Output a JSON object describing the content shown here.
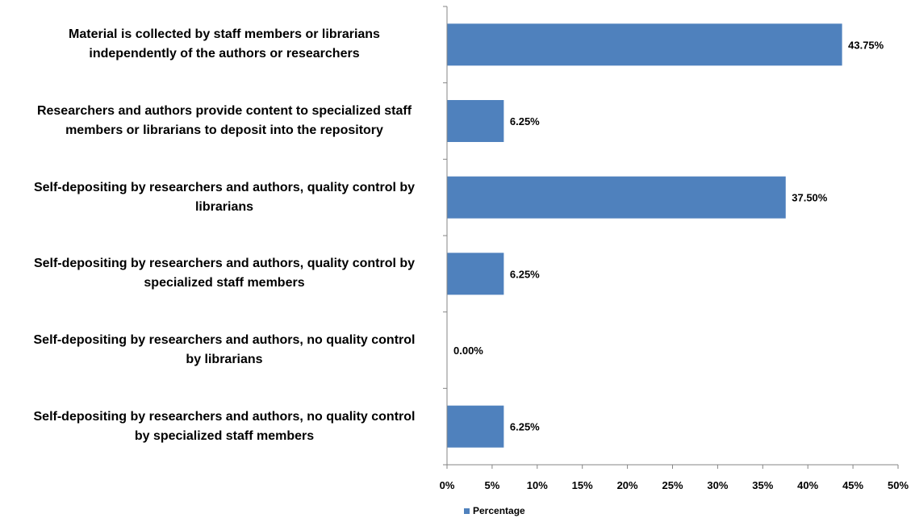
{
  "chart_data": {
    "type": "bar",
    "orientation": "horizontal",
    "categories": [
      "Material is collected by staff members or librarians\nindependently of the authors or researchers",
      "Researchers and authors provide content to specialized staff\nmembers or librarians to deposit into the repository",
      "Self-depositing by researchers and authors, quality control by\nlibrarians",
      "Self-depositing by researchers and authors, quality control by\nspecialized staff members",
      "Self-depositing by researchers and authors, no quality control\nby librarians",
      "Self-depositing by researchers and authors, no quality control\nby specialized staff members"
    ],
    "series": [
      {
        "name": "Percentage",
        "values": [
          43.75,
          6.25,
          37.5,
          6.25,
          0.0,
          6.25
        ],
        "data_labels": [
          "43.75%",
          "6.25%",
          "37.50%",
          "6.25%",
          "0.00%",
          "6.25%"
        ],
        "color": "#4f81bd"
      }
    ],
    "xlim": [
      0,
      50
    ],
    "x_ticks": [
      0,
      5,
      10,
      15,
      20,
      25,
      30,
      35,
      40,
      45,
      50
    ],
    "x_tick_labels": [
      "0%",
      "5%",
      "10%",
      "15%",
      "20%",
      "25%",
      "30%",
      "35%",
      "40%",
      "45%",
      "50%"
    ],
    "grid": false,
    "legend_position": "bottom"
  }
}
